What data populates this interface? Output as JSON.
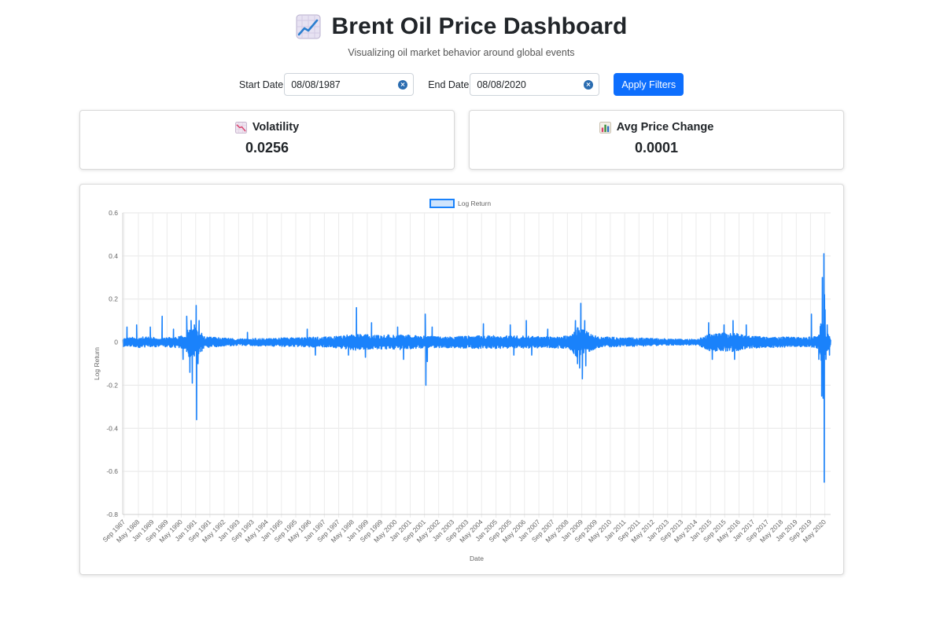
{
  "header": {
    "icon": "chart-increasing-icon",
    "title": "Brent Oil Price Dashboard",
    "subtitle": "Visualizing oil market behavior around global events"
  },
  "filters": {
    "start_label": "Start Date",
    "start_value": "08/08/1987",
    "end_label": "End Date",
    "end_value": "08/08/2020",
    "apply_label": "Apply Filters"
  },
  "metrics": [
    {
      "icon": "chart-decreasing-icon",
      "label": "Volatility",
      "value": "0.0256"
    },
    {
      "icon": "bar-chart-icon",
      "label": "Avg Price Change",
      "value": "0.0001"
    }
  ],
  "colors": {
    "accent": "#0d6efd",
    "series": "#1a82fb",
    "legend_fill": "#cfe4fc"
  },
  "chart_data": {
    "type": "line",
    "legend": [
      "Log Return"
    ],
    "legend_position": "top",
    "xlabel": "Date",
    "ylabel": "Log Return",
    "ylim": [
      -0.8,
      0.6
    ],
    "yticks": [
      -0.8,
      -0.6,
      -0.4,
      -0.2,
      0,
      0.2,
      0.4,
      0.6
    ],
    "ytick_labels": [
      "-0.8",
      "-0.6",
      "-0.4",
      "-0.2",
      "0",
      "0.2",
      "0.4",
      "0.6"
    ],
    "xlim": [
      "1987-08-08",
      "2020-08-08"
    ],
    "xtick_labels": [
      "Sep 1987",
      "May 1988",
      "Jan 1989",
      "Sep 1989",
      "May 1990",
      "Jan 1991",
      "Sep 1991",
      "May 1992",
      "Jan 1993",
      "Sep 1993",
      "May 1994",
      "Jan 1995",
      "Sep 1995",
      "May 1996",
      "Jan 1997",
      "Sep 1997",
      "May 1998",
      "Jan 1999",
      "Sep 1999",
      "May 2000",
      "Jan 2001",
      "Sep 2001",
      "May 2002",
      "Jan 2003",
      "Sep 2003",
      "May 2004",
      "Jan 2005",
      "Sep 2005",
      "May 2006",
      "Jan 2007",
      "Sep 2007",
      "May 2008",
      "Jan 2009",
      "Sep 2009",
      "May 2010",
      "Jan 2011",
      "Sep 2011",
      "May 2012",
      "Jan 2013",
      "Sep 2013",
      "May 2014",
      "Jan 2015",
      "Sep 2015",
      "May 2016",
      "Jan 2017",
      "Sep 2017",
      "May 2018",
      "Jan 2019",
      "Sep 2019",
      "May 2020"
    ],
    "grid": true,
    "series": [
      {
        "name": "Log Return",
        "band_profile": [
          [
            "1987-08-08",
            0.02
          ],
          [
            "1988-06-01",
            0.025
          ],
          [
            "1989-06-01",
            0.02
          ],
          [
            "1990-07-01",
            0.03
          ],
          [
            "1990-09-15",
            0.075
          ],
          [
            "1991-02-01",
            0.07
          ],
          [
            "1991-06-01",
            0.025
          ],
          [
            "1993-01-01",
            0.015
          ],
          [
            "1996-01-01",
            0.022
          ],
          [
            "1997-06-01",
            0.025
          ],
          [
            "1998-06-01",
            0.038
          ],
          [
            "1999-06-01",
            0.032
          ],
          [
            "2000-06-01",
            0.035
          ],
          [
            "2001-06-01",
            0.03
          ],
          [
            "2002-06-01",
            0.025
          ],
          [
            "2004-06-01",
            0.03
          ],
          [
            "2006-06-01",
            0.028
          ],
          [
            "2007-06-01",
            0.025
          ],
          [
            "2008-06-01",
            0.03
          ],
          [
            "2008-10-15",
            0.07
          ],
          [
            "2009-04-01",
            0.05
          ],
          [
            "2009-10-01",
            0.025
          ],
          [
            "2011-06-01",
            0.02
          ],
          [
            "2013-06-01",
            0.014
          ],
          [
            "2014-06-01",
            0.013
          ],
          [
            "2014-12-15",
            0.04
          ],
          [
            "2016-01-15",
            0.045
          ],
          [
            "2016-09-01",
            0.03
          ],
          [
            "2017-06-01",
            0.025
          ],
          [
            "2019-06-01",
            0.022
          ],
          [
            "2020-01-15",
            0.03
          ],
          [
            "2020-03-15",
            0.12
          ],
          [
            "2020-05-01",
            0.06
          ],
          [
            "2020-08-08",
            0.02
          ]
        ],
        "spikes": [
          [
            "1987-10-20",
            0.07
          ],
          [
            "1988-04-01",
            0.08
          ],
          [
            "1988-11-20",
            0.07
          ],
          [
            "1989-06-10",
            0.12
          ],
          [
            "1989-12-20",
            0.06
          ],
          [
            "1990-06-01",
            -0.08
          ],
          [
            "1990-08-02",
            0.12
          ],
          [
            "1990-09-25",
            -0.14
          ],
          [
            "1990-10-15",
            0.1
          ],
          [
            "1990-11-05",
            -0.19
          ],
          [
            "1990-12-10",
            0.08
          ],
          [
            "1991-01-10",
            0.17
          ],
          [
            "1991-01-17",
            -0.36
          ],
          [
            "1991-02-10",
            -0.1
          ],
          [
            "1991-03-01",
            0.1
          ],
          [
            "1993-06-01",
            0.045
          ],
          [
            "1996-03-15",
            0.06
          ],
          [
            "1996-08-01",
            -0.06
          ],
          [
            "1998-02-15",
            -0.06
          ],
          [
            "1998-07-01",
            0.16
          ],
          [
            "1998-12-01",
            -0.07
          ],
          [
            "1999-03-15",
            0.09
          ],
          [
            "2000-06-01",
            0.07
          ],
          [
            "2000-09-10",
            -0.08
          ],
          [
            "2001-09-14",
            0.13
          ],
          [
            "2001-09-25",
            -0.2
          ],
          [
            "2001-10-20",
            -0.09
          ],
          [
            "2002-01-10",
            0.07
          ],
          [
            "2004-06-01",
            0.085
          ],
          [
            "2005-09-01",
            0.08
          ],
          [
            "2005-11-01",
            -0.06
          ],
          [
            "2006-06-01",
            0.1
          ],
          [
            "2006-09-01",
            -0.06
          ],
          [
            "2007-06-01",
            0.06
          ],
          [
            "2008-09-15",
            0.1
          ],
          [
            "2008-10-20",
            -0.1
          ],
          [
            "2008-11-25",
            -0.12
          ],
          [
            "2008-12-15",
            0.18
          ],
          [
            "2009-01-10",
            -0.17
          ],
          [
            "2009-02-20",
            0.1
          ],
          [
            "2009-03-10",
            -0.11
          ],
          [
            "2014-12-01",
            0.09
          ],
          [
            "2015-02-01",
            -0.08
          ],
          [
            "2015-08-20",
            0.08
          ],
          [
            "2016-01-20",
            0.1
          ],
          [
            "2016-02-15",
            -0.08
          ],
          [
            "2016-09-01",
            0.08
          ],
          [
            "2019-09-16",
            0.13
          ],
          [
            "2020-01-20",
            -0.08
          ],
          [
            "2020-03-09",
            -0.25
          ],
          [
            "2020-03-20",
            0.3
          ],
          [
            "2020-04-01",
            -0.26
          ],
          [
            "2020-04-15",
            0.41
          ],
          [
            "2020-04-21",
            -0.65
          ],
          [
            "2020-04-25",
            0.22
          ],
          [
            "2020-05-05",
            0.15
          ],
          [
            "2020-05-20",
            -0.08
          ],
          [
            "2020-06-10",
            0.08
          ],
          [
            "2020-07-20",
            -0.06
          ]
        ]
      }
    ]
  }
}
